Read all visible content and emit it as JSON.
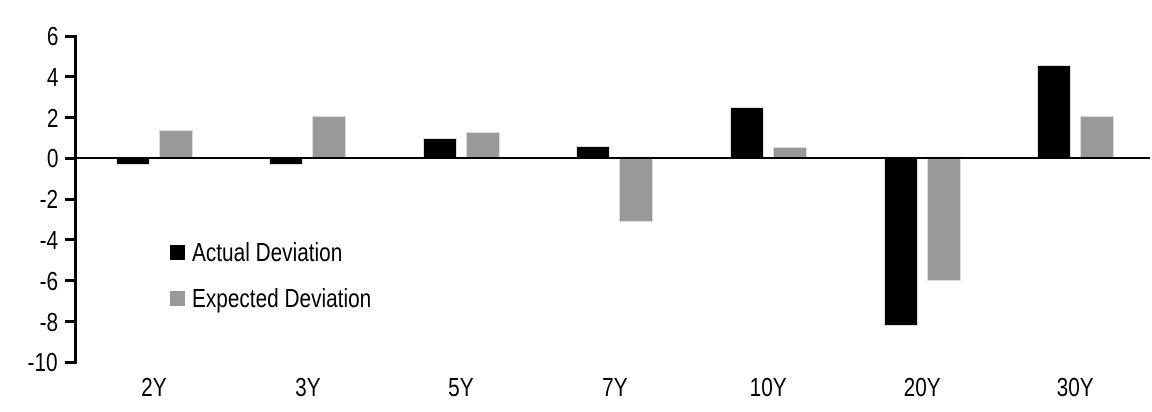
{
  "chart_data": {
    "type": "bar",
    "title": "",
    "xlabel": "",
    "ylabel": "",
    "categories": [
      "2Y",
      "3Y",
      "5Y",
      "7Y",
      "10Y",
      "20Y",
      "30Y"
    ],
    "series": [
      {
        "name": "Actual Deviation",
        "color": "#000000",
        "values": [
          -0.3,
          -0.3,
          1.0,
          0.6,
          2.5,
          -8.2,
          4.6
        ]
      },
      {
        "name": "Expected Deviation",
        "color": "#999999",
        "values": [
          1.4,
          2.1,
          1.3,
          -3.1,
          0.55,
          -6.0,
          2.1
        ]
      }
    ],
    "yticks": [
      6,
      4,
      2,
      0,
      -2,
      -4,
      -6,
      -8,
      -10
    ],
    "ylim": [
      -10,
      6
    ],
    "grid": false,
    "legend_position": "inside-left",
    "axis_color": "#000000",
    "bar_outline_color": "#dcdcdc",
    "background_color": "#ffffff"
  }
}
